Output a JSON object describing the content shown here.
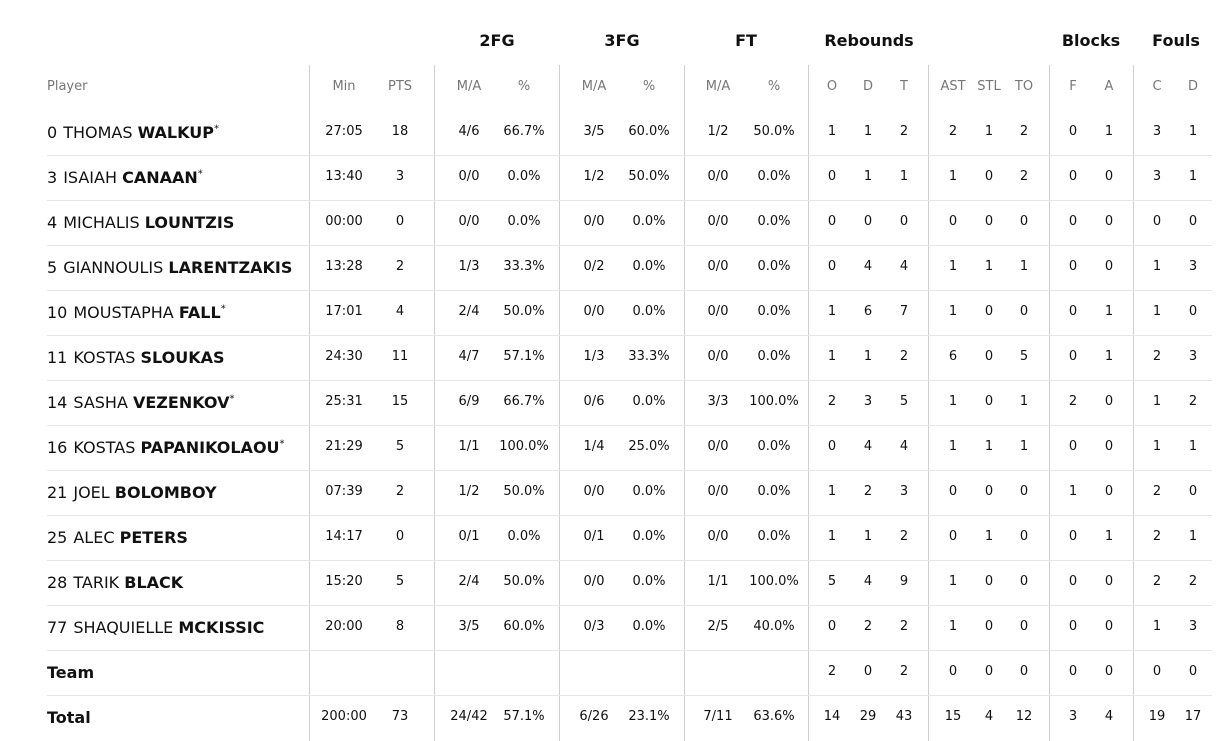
{
  "table": {
    "group_headers": [
      "2FG",
      "3FG",
      "FT",
      "Rebounds",
      "Blocks",
      "Fouls"
    ],
    "columns": [
      "Player",
      "Min",
      "PTS",
      "M/A",
      "%",
      "M/A",
      "%",
      "M/A",
      "%",
      "O",
      "D",
      "T",
      "AST",
      "STL",
      "TO",
      "F",
      "A",
      "C",
      "D"
    ],
    "rows": [
      {
        "number": "0",
        "first": "THOMAS",
        "last": "WALKUP",
        "starter": "*",
        "cells": [
          "27:05",
          "18",
          "4/6",
          "66.7%",
          "3/5",
          "60.0%",
          "1/2",
          "50.0%",
          "1",
          "1",
          "2",
          "2",
          "1",
          "2",
          "0",
          "1",
          "3",
          "1"
        ]
      },
      {
        "number": "3",
        "first": "ISAIAH",
        "last": "CANAAN",
        "starter": "*",
        "cells": [
          "13:40",
          "3",
          "0/0",
          "0.0%",
          "1/2",
          "50.0%",
          "0/0",
          "0.0%",
          "0",
          "1",
          "1",
          "1",
          "0",
          "2",
          "0",
          "0",
          "3",
          "1"
        ]
      },
      {
        "number": "4",
        "first": "MICHALIS",
        "last": "LOUNTZIS",
        "cells": [
          "00:00",
          "0",
          "0/0",
          "0.0%",
          "0/0",
          "0.0%",
          "0/0",
          "0.0%",
          "0",
          "0",
          "0",
          "0",
          "0",
          "0",
          "0",
          "0",
          "0",
          "0"
        ]
      },
      {
        "number": "5",
        "first": "GIANNOULIS",
        "last": "LARENTZAKIS",
        "cells": [
          "13:28",
          "2",
          "1/3",
          "33.3%",
          "0/2",
          "0.0%",
          "0/0",
          "0.0%",
          "0",
          "4",
          "4",
          "1",
          "1",
          "1",
          "0",
          "0",
          "1",
          "3"
        ]
      },
      {
        "number": "10",
        "first": "MOUSTAPHA",
        "last": "FALL",
        "starter": "*",
        "cells": [
          "17:01",
          "4",
          "2/4",
          "50.0%",
          "0/0",
          "0.0%",
          "0/0",
          "0.0%",
          "1",
          "6",
          "7",
          "1",
          "0",
          "0",
          "0",
          "1",
          "1",
          "0"
        ]
      },
      {
        "number": "11",
        "first": "KOSTAS",
        "last": "SLOUKAS",
        "cells": [
          "24:30",
          "11",
          "4/7",
          "57.1%",
          "1/3",
          "33.3%",
          "0/0",
          "0.0%",
          "1",
          "1",
          "2",
          "6",
          "0",
          "5",
          "0",
          "1",
          "2",
          "3"
        ]
      },
      {
        "number": "14",
        "first": "SASHA",
        "last": "VEZENKOV",
        "starter": "*",
        "cells": [
          "25:31",
          "15",
          "6/9",
          "66.7%",
          "0/6",
          "0.0%",
          "3/3",
          "100.0%",
          "2",
          "3",
          "5",
          "1",
          "0",
          "1",
          "2",
          "0",
          "1",
          "2"
        ]
      },
      {
        "number": "16",
        "first": "KOSTAS",
        "last": "PAPANIKOLAOU",
        "starter": "*",
        "cells": [
          "21:29",
          "5",
          "1/1",
          "100.0%",
          "1/4",
          "25.0%",
          "0/0",
          "0.0%",
          "0",
          "4",
          "4",
          "1",
          "1",
          "1",
          "0",
          "0",
          "1",
          "1"
        ]
      },
      {
        "number": "21",
        "first": "JOEL",
        "last": "BOLOMBOY",
        "cells": [
          "07:39",
          "2",
          "1/2",
          "50.0%",
          "0/0",
          "0.0%",
          "0/0",
          "0.0%",
          "1",
          "2",
          "3",
          "0",
          "0",
          "0",
          "1",
          "0",
          "2",
          "0"
        ]
      },
      {
        "number": "25",
        "first": "ALEC",
        "last": "PETERS",
        "cells": [
          "14:17",
          "0",
          "0/1",
          "0.0%",
          "0/1",
          "0.0%",
          "0/0",
          "0.0%",
          "1",
          "1",
          "2",
          "0",
          "1",
          "0",
          "0",
          "1",
          "2",
          "1"
        ]
      },
      {
        "number": "28",
        "first": "TARIK",
        "last": "BLACK",
        "cells": [
          "15:20",
          "5",
          "2/4",
          "50.0%",
          "0/0",
          "0.0%",
          "1/1",
          "100.0%",
          "5",
          "4",
          "9",
          "1",
          "0",
          "0",
          "0",
          "0",
          "2",
          "2"
        ]
      },
      {
        "number": "77",
        "first": "SHAQUIELLE",
        "last": "MCKISSIC",
        "cells": [
          "20:00",
          "8",
          "3/5",
          "60.0%",
          "0/3",
          "0.0%",
          "2/5",
          "40.0%",
          "0",
          "2",
          "2",
          "1",
          "0",
          "0",
          "0",
          "0",
          "1",
          "3"
        ]
      },
      {
        "label": "Team",
        "cells": [
          null,
          null,
          null,
          null,
          null,
          null,
          null,
          null,
          "2",
          "0",
          "2",
          "0",
          "0",
          "0",
          "0",
          "0",
          "0",
          "0"
        ]
      },
      {
        "label": "Total",
        "cells": [
          "200:00",
          "73",
          "24/42",
          "57.1%",
          "6/26",
          "23.1%",
          "7/11",
          "63.6%",
          "14",
          "29",
          "43",
          "15",
          "4",
          "12",
          "3",
          "4",
          "19",
          "17"
        ]
      }
    ]
  }
}
